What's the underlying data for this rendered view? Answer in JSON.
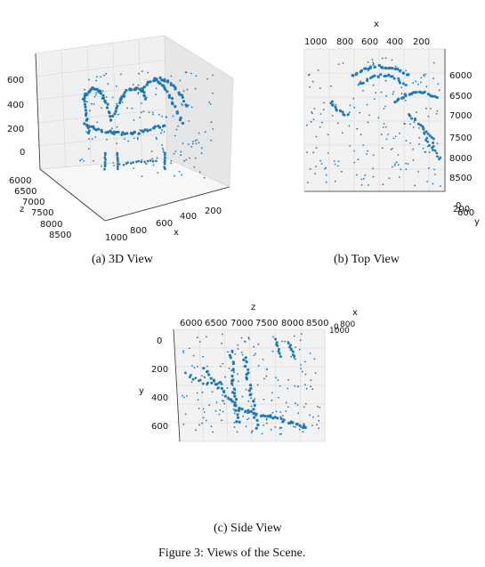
{
  "figure_caption": "Figure 3: Views of the Scene.",
  "point_color": "#1f77b4",
  "panels": {
    "a": {
      "caption": "(a) 3D View",
      "view": "3d",
      "z_axis_ticks": [
        "600",
        "400",
        "200",
        "0"
      ],
      "left_axis": {
        "label": "z",
        "ticks": [
          "6000",
          "6500",
          "7000",
          "7500",
          "8000",
          "8500"
        ]
      },
      "bottom_axis": {
        "label": "x",
        "ticks": [
          "1000",
          "800",
          "600",
          "400",
          "200"
        ]
      }
    },
    "b": {
      "caption": "(b) Top View",
      "view": "top",
      "top_axis": {
        "label": "x",
        "ticks": [
          "1000",
          "800",
          "600",
          "400",
          "200"
        ]
      },
      "right_axis": {
        "ticks": [
          "6000",
          "6500",
          "7000",
          "7500",
          "8000",
          "8500"
        ]
      },
      "corner": {
        "label": "y",
        "ticks": [
          "0",
          "200",
          "600"
        ]
      }
    },
    "c": {
      "caption": "(c) Side View",
      "view": "side",
      "top_axis": {
        "label": "z",
        "ticks": [
          "6000",
          "6500",
          "7000",
          "7500",
          "8000",
          "8500"
        ]
      },
      "left_axis": {
        "label": "y",
        "ticks": [
          "0",
          "200",
          "400",
          "600"
        ]
      },
      "corner": {
        "label": "x",
        "ticks": [
          "0",
          "800",
          "1000"
        ]
      }
    }
  }
}
